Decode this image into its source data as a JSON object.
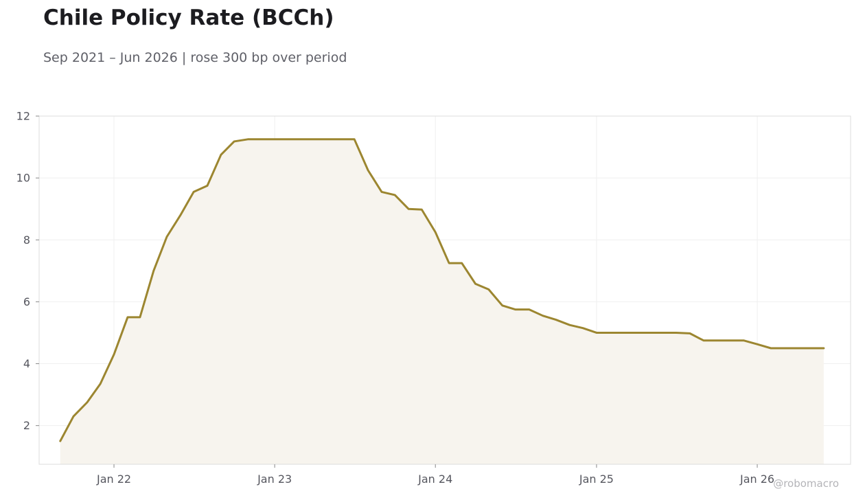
{
  "header": {
    "title": "Chile Policy Rate (BCCh)",
    "subtitle": "Sep 2021 – Jun 2026 | rose 300 bp over period"
  },
  "credit": "@robomacro",
  "colors": {
    "line": "#9c8630",
    "fill": "#f7f4ee",
    "grid": "#efefef",
    "frame": "#dcdcdc"
  },
  "chart_data": {
    "type": "area",
    "title": "Chile Policy Rate (BCCh)",
    "subtitle": "Sep 2021 – Jun 2026 | rose 300 bp over period",
    "xlabel": "",
    "ylabel": "",
    "ylim": [
      0.75,
      12
    ],
    "yticks": [
      2,
      4,
      6,
      8,
      10,
      12
    ],
    "xlim": [
      "2021-07-15",
      "2026-08-01"
    ],
    "xticks": [
      {
        "date": "2022-01-01",
        "label": "Jan 22"
      },
      {
        "date": "2023-01-01",
        "label": "Jan 23"
      },
      {
        "date": "2024-01-01",
        "label": "Jan 24"
      },
      {
        "date": "2025-01-01",
        "label": "Jan 25"
      },
      {
        "date": "2026-01-01",
        "label": "Jan 26"
      }
    ],
    "grid": true,
    "legend": "none",
    "series": [
      {
        "x": [
          "2021-09-01",
          "2021-10-01",
          "2021-11-01",
          "2021-12-01",
          "2022-01-01",
          "2022-02-01",
          "2022-03-01",
          "2022-04-01",
          "2022-05-01",
          "2022-06-01",
          "2022-07-01",
          "2022-08-01",
          "2022-09-01",
          "2022-10-01",
          "2022-11-01",
          "2022-12-01",
          "2023-01-01",
          "2023-02-01",
          "2023-03-01",
          "2023-04-01",
          "2023-05-01",
          "2023-06-01",
          "2023-07-01",
          "2023-08-01",
          "2023-09-01",
          "2023-10-01",
          "2023-11-01",
          "2023-12-01",
          "2024-01-01",
          "2024-02-01",
          "2024-03-01",
          "2024-04-01",
          "2024-05-01",
          "2024-06-01",
          "2024-07-01",
          "2024-08-01",
          "2024-09-01",
          "2024-10-01",
          "2024-11-01",
          "2024-12-01",
          "2025-01-01",
          "2025-02-01",
          "2025-03-01",
          "2025-04-01",
          "2025-05-01",
          "2025-06-01",
          "2025-07-01",
          "2025-08-01",
          "2025-09-01",
          "2025-10-01",
          "2025-11-01",
          "2025-12-01",
          "2026-01-01",
          "2026-02-01",
          "2026-03-01",
          "2026-04-01",
          "2026-05-01",
          "2026-06-01"
        ],
        "values": [
          1.5,
          2.3,
          2.75,
          3.35,
          4.3,
          5.5,
          5.5,
          7.0,
          8.1,
          8.8,
          9.55,
          9.75,
          10.75,
          11.18,
          11.25,
          11.25,
          11.25,
          11.25,
          11.25,
          11.25,
          11.25,
          11.25,
          11.25,
          10.25,
          9.55,
          9.45,
          9.0,
          8.98,
          8.25,
          7.25,
          7.25,
          6.58,
          6.4,
          5.88,
          5.75,
          5.75,
          5.55,
          5.42,
          5.25,
          5.15,
          5.0,
          5.0,
          5.0,
          5.0,
          5.0,
          5.0,
          5.0,
          4.98,
          4.75,
          4.75,
          4.75,
          4.75,
          4.63,
          4.5,
          4.5,
          4.5,
          4.5,
          4.5
        ]
      }
    ]
  }
}
